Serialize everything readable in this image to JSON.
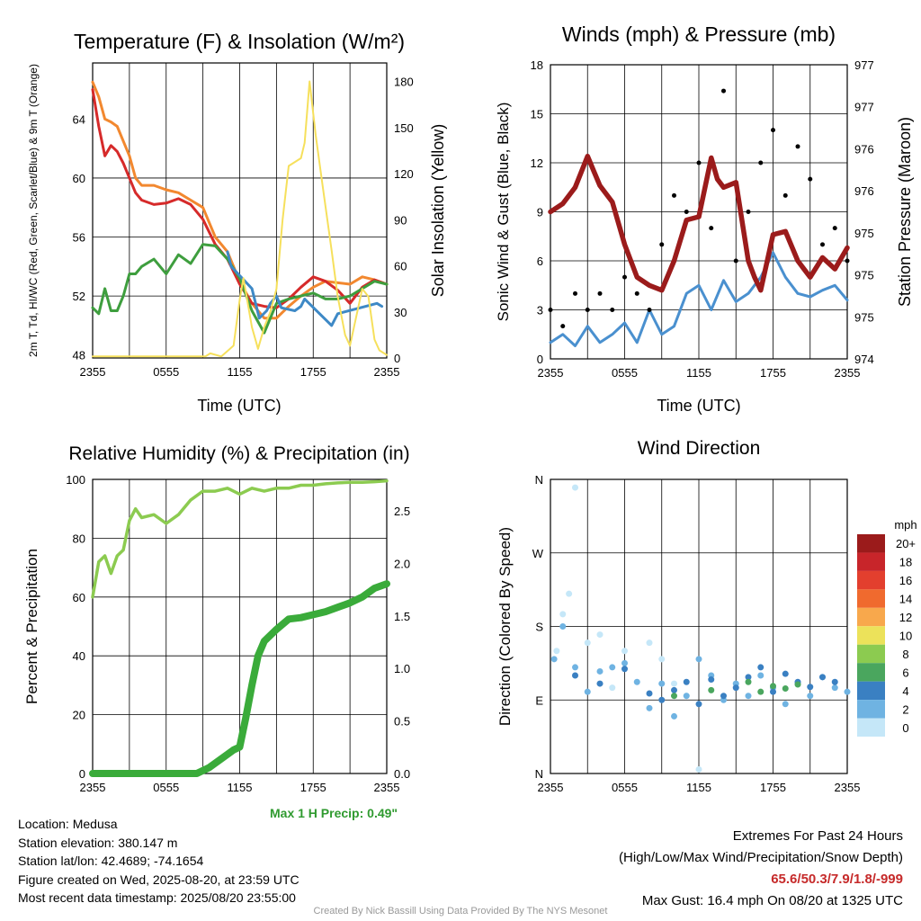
{
  "chart_data": [
    {
      "type": "line",
      "title": "Temperature (F) & Insolation (W/m²)",
      "xlabel": "Time (UTC)",
      "ylabel": "2m T, Td, HI/WC (Red, Green, Scarlet/Blue) & 9m T (Orange)",
      "y2label": "Solar Insolation (Yellow)",
      "x_ticks": [
        "2355",
        "0555",
        "1155",
        "1755",
        "2355"
      ],
      "y_ticks": [
        "48",
        "52",
        "56",
        "60",
        "64"
      ],
      "y2_ticks": [
        "0",
        "30",
        "60",
        "90",
        "120",
        "150",
        "180"
      ],
      "ylim": [
        47.8,
        67.8
      ],
      "y2lim": [
        0,
        192
      ],
      "series": [
        {
          "color": "#f2882f",
          "x": [
            0,
            0.5,
            1,
            1.5,
            2,
            2.5,
            3,
            3.5,
            4,
            5,
            6,
            7,
            8,
            9,
            10,
            11,
            12,
            13,
            14,
            15,
            16,
            17,
            18,
            19,
            20,
            21,
            22,
            23,
            24
          ],
          "values": [
            66.5,
            65.5,
            64,
            63.8,
            63.5,
            62.5,
            61.5,
            60,
            59.5,
            59.5,
            59.2,
            59,
            58.5,
            58,
            56,
            55,
            53,
            51.5,
            50.5,
            50.5,
            51.3,
            52,
            52.6,
            53,
            52.9,
            52.8,
            53.3,
            53.1,
            52.8
          ]
        },
        {
          "color": "#d62a2a",
          "x": [
            0,
            0.5,
            1,
            1.5,
            2,
            2.5,
            3,
            3.5,
            4,
            5,
            6,
            7,
            8,
            9,
            10,
            11,
            12,
            13,
            14,
            15,
            16,
            17,
            18,
            19,
            20,
            21,
            22,
            23,
            24
          ],
          "values": [
            66,
            63.5,
            61.5,
            62.2,
            61.8,
            61,
            60,
            59,
            58.5,
            58.2,
            58.3,
            58.6,
            58.2,
            57.2,
            55.5,
            54.5,
            52.8,
            51.5,
            51.3,
            51.2,
            51.8,
            52.6,
            53.3,
            53,
            52.4,
            51.5,
            52.6,
            53.1,
            52.8
          ]
        },
        {
          "color": "#3e9e3e",
          "x": [
            0,
            0.5,
            1,
            1.5,
            2,
            2.5,
            3,
            3.5,
            4,
            5,
            6,
            7,
            8,
            9,
            10,
            11,
            12,
            13,
            14,
            15,
            16,
            17,
            18,
            19,
            20,
            21,
            22,
            23,
            24
          ],
          "values": [
            51.2,
            50.8,
            52.5,
            51,
            51,
            52,
            53.5,
            53.5,
            54,
            54.5,
            53.5,
            54.8,
            54.2,
            55.5,
            55.4,
            54.5,
            53.2,
            51,
            49.5,
            51.5,
            51.8,
            52,
            52.2,
            51.8,
            51.8,
            52,
            52.5,
            53,
            52.8
          ]
        },
        {
          "color": "#3e89c6",
          "x": [
            11,
            11.3,
            13,
            13.3,
            13.6,
            14.2,
            14.5,
            15,
            15.4,
            16.5,
            17,
            17.3,
            19.5,
            20,
            23.2,
            23.6
          ],
          "values": [
            55,
            54,
            52.5,
            51.5,
            50.5,
            51,
            51.5,
            52,
            51.2,
            51,
            51.3,
            51.8,
            50,
            50.8,
            51.5,
            51.3
          ]
        },
        {
          "color": "#f6e05c",
          "x": [
            0,
            9.2,
            9.6,
            10.5,
            11.5,
            12,
            12.3,
            13,
            13.5,
            14,
            14.5,
            15,
            15.5,
            16,
            17,
            17.3,
            17.7,
            18.2,
            18.8,
            19.5,
            20,
            20.6,
            21,
            22,
            22.5,
            23,
            23.4,
            24
          ],
          "values": [
            1,
            1,
            3,
            1,
            8,
            38,
            52,
            20,
            6,
            20,
            30,
            45,
            90,
            125,
            130,
            140,
            180,
            145,
            110,
            70,
            40,
            15,
            8,
            45,
            40,
            12,
            5,
            2
          ]
        }
      ]
    },
    {
      "type": "line",
      "title": "Winds (mph) & Pressure (mb)",
      "xlabel": "Time (UTC)",
      "ylabel": "Sonic Wind & Gust (Blue, Black)",
      "y2label": "Station Pressure (Maroon)",
      "x_ticks": [
        "2355",
        "0555",
        "1155",
        "1755",
        "2355"
      ],
      "y_ticks": [
        "0",
        "3",
        "6",
        "9",
        "12",
        "15",
        "18"
      ],
      "y2_ticks": [
        "974",
        "975",
        "975",
        "975",
        "976",
        "976",
        "977",
        "977"
      ],
      "ylim": [
        0,
        18
      ],
      "series": [
        {
          "color": "#4a90cf",
          "x": [
            0,
            1,
            2,
            3,
            4,
            5,
            6,
            7,
            8,
            9,
            10,
            11,
            12,
            13,
            14,
            15,
            16,
            17,
            18,
            19,
            20,
            21,
            22,
            23,
            24
          ],
          "values": [
            1,
            1.5,
            0.8,
            2,
            1,
            1.5,
            2.2,
            1,
            3,
            1.5,
            2,
            4,
            4.5,
            3,
            4.8,
            3.5,
            4,
            5,
            6.5,
            5,
            4,
            3.8,
            4.2,
            4.5,
            3.6
          ]
        },
        {
          "color": "#9b1b1b",
          "x": [
            0,
            1,
            2,
            3,
            3.5,
            4,
            5,
            6,
            7,
            8,
            9,
            10,
            11,
            12,
            13,
            13.5,
            14,
            15,
            16,
            16.5,
            17,
            18,
            19,
            20,
            21,
            22,
            23,
            24
          ],
          "values": [
            9,
            9.5,
            10.5,
            12.4,
            11.5,
            10.6,
            9.6,
            7,
            5,
            4.5,
            4.2,
            6,
            8.5,
            8.7,
            12.3,
            11,
            10.5,
            10.8,
            6,
            5,
            4.2,
            7.6,
            7.8,
            6,
            5,
            6.2,
            5.5,
            6.8
          ]
        },
        {
          "color": "#000000",
          "x": [
            0,
            1,
            2,
            3,
            4,
            5,
            6,
            7,
            8,
            9,
            10,
            11,
            12,
            13,
            14,
            15,
            16,
            17,
            18,
            19,
            20,
            21,
            22,
            23,
            24
          ],
          "values": [
            3,
            2,
            4,
            3,
            4,
            3,
            5,
            4,
            3,
            7,
            10,
            9,
            12,
            8,
            16.4,
            6,
            9,
            12,
            14,
            10,
            13,
            11,
            7,
            8,
            6
          ]
        }
      ]
    },
    {
      "type": "line",
      "title": "Relative Humidity (%) & Precipitation (in)",
      "ylabel": "Percent & Precipitation",
      "x_ticks": [
        "2355",
        "0555",
        "1155",
        "1755",
        "2355"
      ],
      "y_ticks": [
        "0",
        "20",
        "40",
        "60",
        "80",
        "100"
      ],
      "y2_ticks": [
        "0.0",
        "0.5",
        "1.0",
        "1.5",
        "2.0",
        "2.5"
      ],
      "ylim": [
        0,
        100
      ],
      "y2lim": [
        0,
        2.8
      ],
      "annotation": "Max 1 H Precip: 0.49\"",
      "series": [
        {
          "color": "#8ccb50",
          "x": [
            0,
            0.5,
            1,
            1.5,
            2,
            2.5,
            3,
            3.5,
            4,
            5,
            6,
            7,
            8,
            9,
            10,
            11,
            12,
            13,
            14,
            15,
            16,
            17,
            18,
            19,
            20,
            21,
            22,
            23,
            24
          ],
          "values": [
            60,
            72,
            74,
            68,
            74,
            76,
            86,
            90,
            87,
            88,
            85,
            88,
            93,
            96,
            96,
            97,
            95,
            97,
            96,
            97,
            97,
            98,
            98,
            98.5,
            98.8,
            99,
            99,
            99.2,
            99.5
          ]
        },
        {
          "color": "#3aab3a",
          "x": [
            0,
            6,
            8.5,
            9.5,
            10.5,
            11.5,
            12,
            12.5,
            13,
            13.5,
            14,
            15,
            16,
            17,
            18,
            19,
            20,
            21,
            22,
            23,
            24
          ],
          "values": [
            0,
            0,
            0,
            2,
            5,
            8,
            9,
            19,
            30,
            40,
            45,
            49,
            52.5,
            53,
            54,
            55,
            56.5,
            58,
            60,
            63,
            64.5
          ]
        }
      ]
    },
    {
      "type": "scatter",
      "title": "Wind Direction",
      "ylabel": "Direction (Colored By Speed)",
      "x_ticks": [
        "2355",
        "0555",
        "1155",
        "1755",
        "2355"
      ],
      "y_ticks": [
        "N",
        "E",
        "S",
        "W",
        "N"
      ],
      "colorbar": {
        "title": "mph",
        "labels": [
          "20+",
          "18",
          "16",
          "14",
          "12",
          "10",
          "8",
          "6",
          "4",
          "2",
          "0"
        ],
        "colors": [
          "#9b1b1b",
          "#c8252a",
          "#e33f2e",
          "#f06a2e",
          "#f8a84c",
          "#ece25a",
          "#8ccb50",
          "#4aa65e",
          "#3a80c2",
          "#6fb3e2",
          "#c5e7f8"
        ]
      },
      "series": [
        {
          "color": "#c5e7f8",
          "x": [
            0.5,
            1,
            1.5,
            2,
            3,
            4,
            5,
            6,
            8,
            9,
            10,
            11,
            12
          ],
          "values": [
            150,
            195,
            220,
            350,
            160,
            170,
            105,
            150,
            160,
            140,
            110,
            95,
            5
          ]
        },
        {
          "color": "#6fb3e2",
          "x": [
            0.3,
            1,
            2,
            3,
            4,
            5,
            6,
            7,
            8,
            9,
            10,
            11,
            12,
            13,
            14,
            15,
            16,
            17,
            18,
            19,
            20,
            21,
            22,
            23,
            24
          ],
          "values": [
            140,
            180,
            130,
            100,
            125,
            130,
            135,
            112,
            80,
            110,
            70,
            95,
            140,
            120,
            90,
            110,
            95,
            120,
            105,
            85,
            110,
            95,
            118,
            105,
            100
          ]
        },
        {
          "color": "#3a80c2",
          "x": [
            2,
            4,
            6,
            8,
            9,
            10,
            11,
            12,
            13,
            14,
            15,
            16,
            17,
            18,
            19,
            20,
            21,
            22,
            23
          ],
          "values": [
            120,
            110,
            128,
            98,
            90,
            102,
            112,
            85,
            115,
            95,
            105,
            118,
            130,
            100,
            122,
            112,
            106,
            118,
            112
          ]
        },
        {
          "color": "#4aa65e",
          "x": [
            10,
            13,
            16,
            17,
            18,
            19,
            20
          ],
          "values": [
            95,
            102,
            112,
            100,
            107,
            104,
            109
          ]
        }
      ]
    }
  ],
  "info": {
    "location": "Location: Medusa",
    "elevation": "Station elevation: 380.147 m",
    "latlon": "Station lat/lon: 42.4689; -74.1654",
    "created": "Figure created on Wed, 2025-08-20, at 23:59 UTC",
    "recent": "Most recent data timestamp: 2025/08/20 23:55:00"
  },
  "extremes": {
    "title": "Extremes For Past 24 Hours",
    "subtitle": "(High/Low/Max Wind/Precipitation/Snow Depth)",
    "values": "65.6/50.3/7.9/1.8/-999",
    "gust": "Max Gust: 16.4 mph On 08/20 at 1325 UTC"
  },
  "credit": "Created By Nick Bassill Using Data Provided By The NYS Mesonet"
}
